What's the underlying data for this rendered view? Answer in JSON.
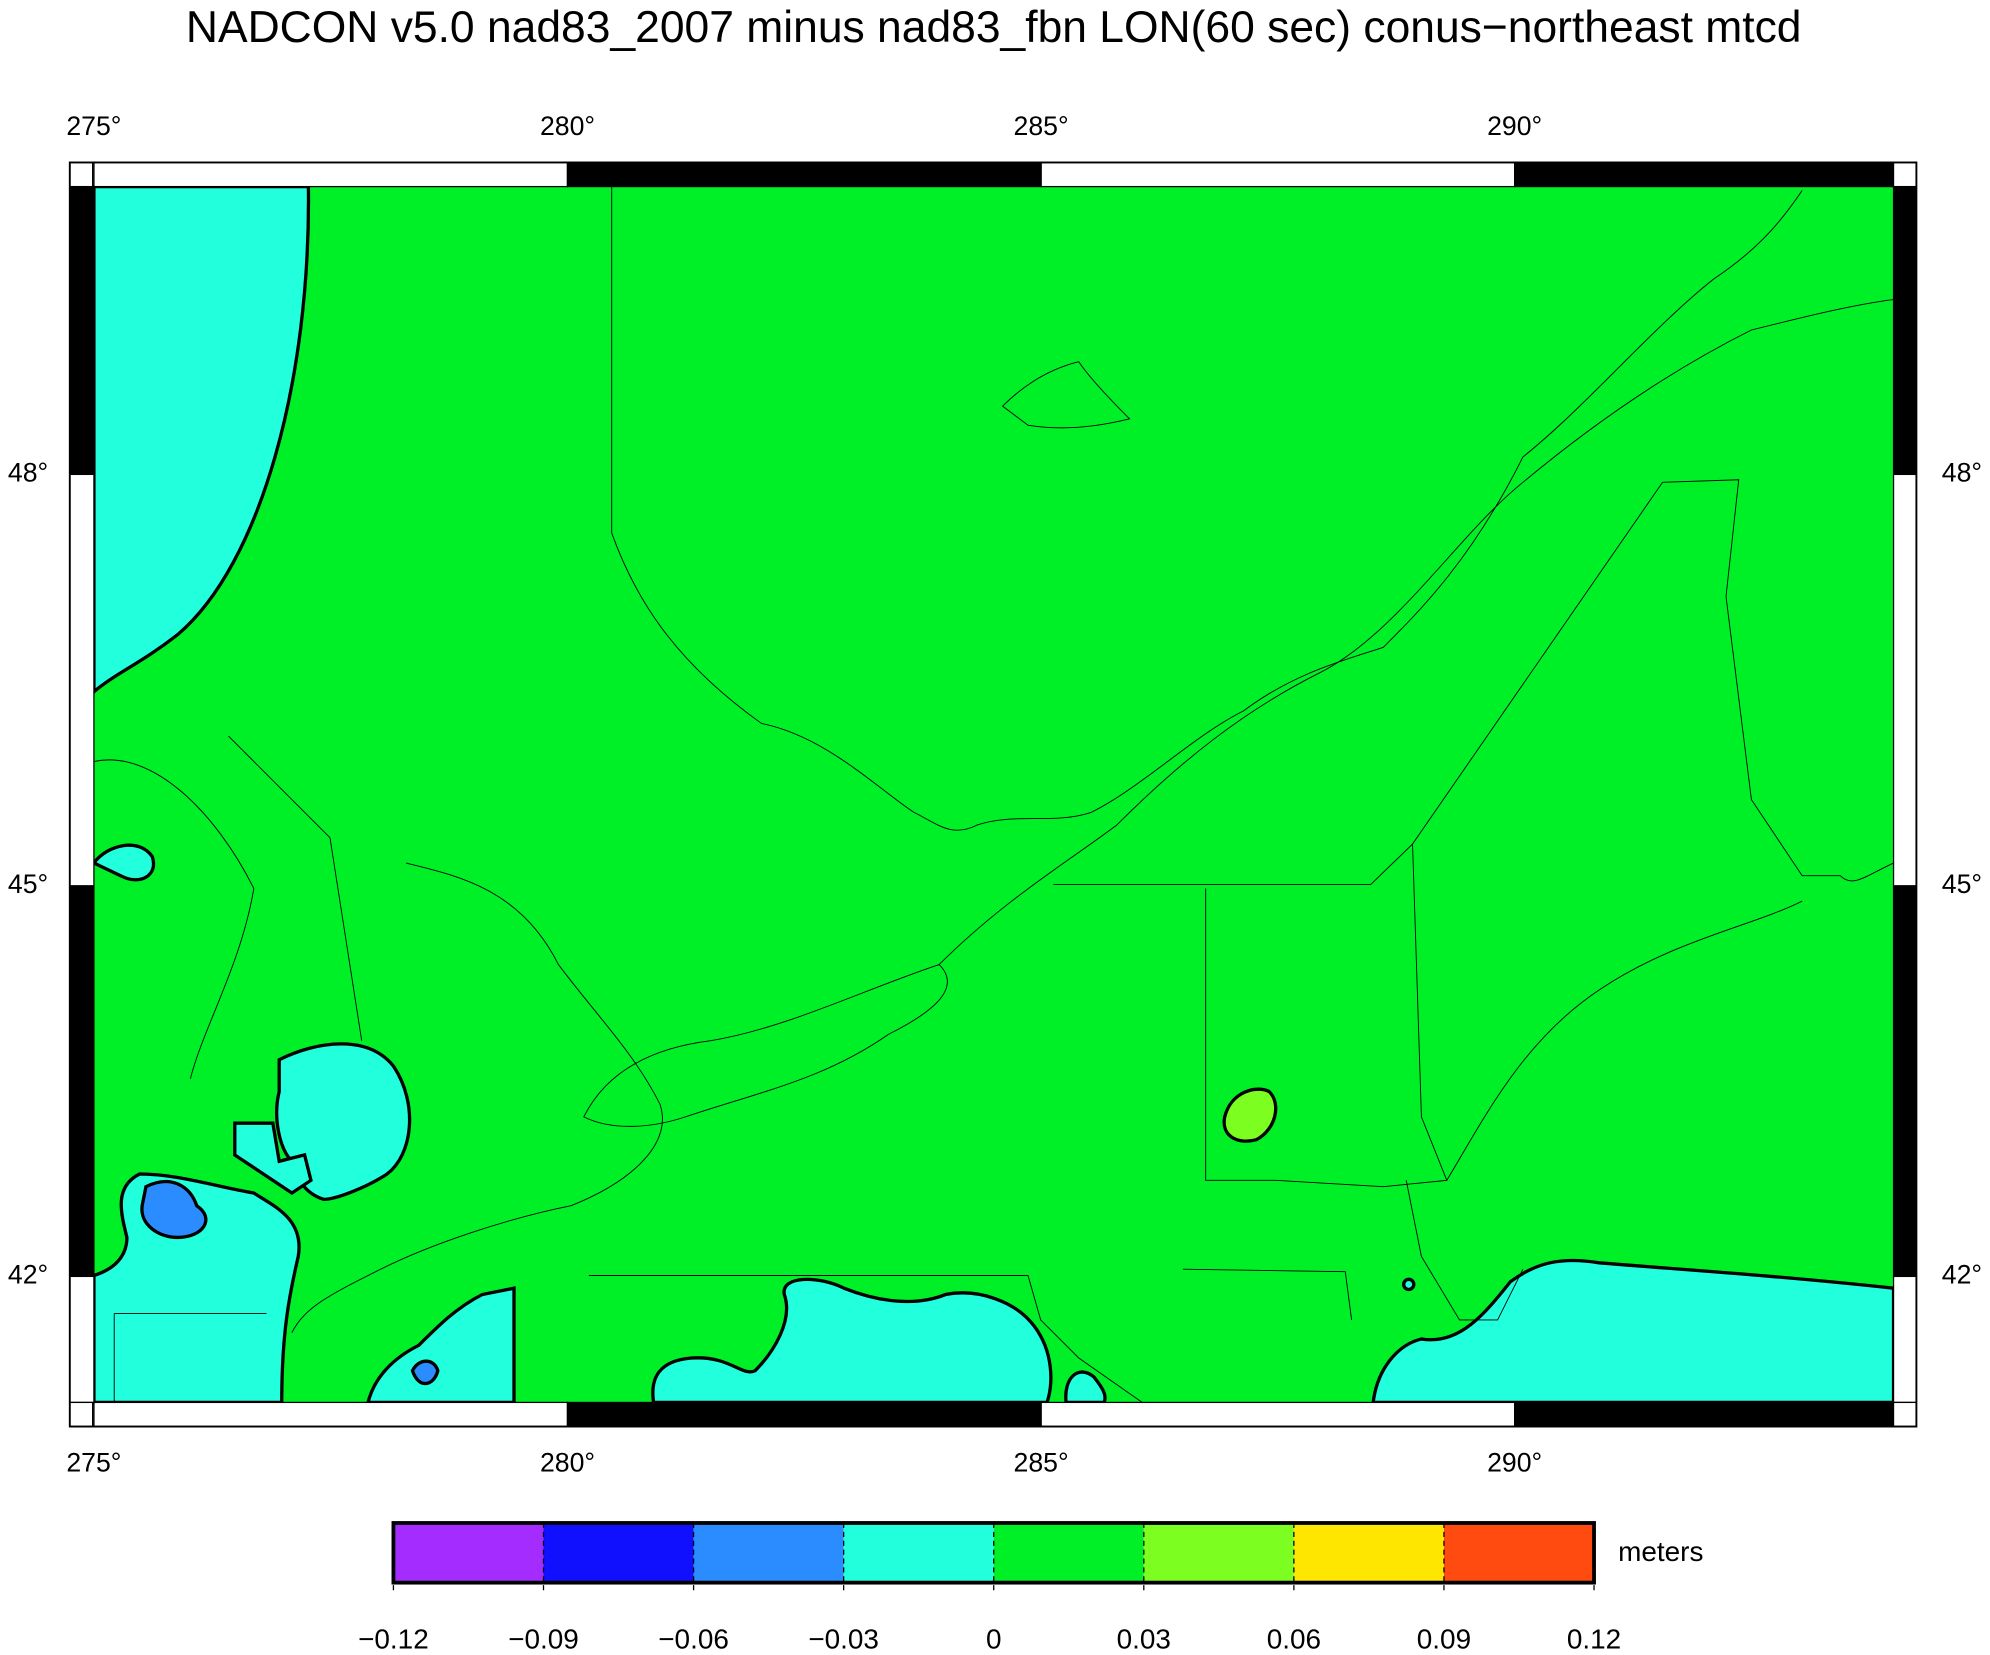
{
  "chart_data": {
    "type": "map",
    "title": "NADCON v5.0 nad83_2007 minus nad83_fbn LON(60 sec) conus−northeast mtcd",
    "projection": "mercator",
    "xlim": [
      275,
      294
    ],
    "ylim": [
      41,
      50
    ],
    "xticks": [
      {
        "value": 275,
        "label": "275°"
      },
      {
        "value": 280,
        "label": "280°"
      },
      {
        "value": 285,
        "label": "285°"
      },
      {
        "value": 290,
        "label": "290°"
      }
    ],
    "yticks": [
      {
        "value": 42,
        "label": "42°"
      },
      {
        "value": 45,
        "label": "45°"
      },
      {
        "value": 48,
        "label": "48°"
      }
    ],
    "colorbar": {
      "label": "meters",
      "ticks": [
        {
          "value": -0.12,
          "label": "−0.12"
        },
        {
          "value": -0.09,
          "label": "−0.09"
        },
        {
          "value": -0.06,
          "label": "−0.06"
        },
        {
          "value": -0.03,
          "label": "−0.03"
        },
        0,
        0.03,
        0.06,
        0.09,
        0.12
      ],
      "colors": [
        "#a52cff",
        "#1010ff",
        "#2a8cff",
        "#22ffdc",
        "#00f028",
        "#7cff20",
        "#ffe600",
        "#ff4a10"
      ]
    }
  }
}
